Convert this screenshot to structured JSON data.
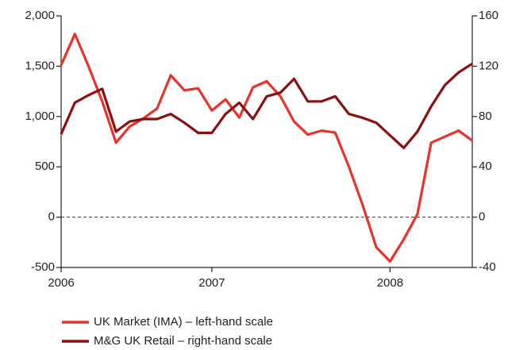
{
  "chart_data": {
    "type": "line",
    "categories": [
      "2006",
      null,
      null,
      null,
      null,
      null,
      null,
      null,
      null,
      null,
      null,
      "2007",
      null,
      null,
      null,
      null,
      null,
      null,
      null,
      null,
      null,
      null,
      null,
      null,
      "2008",
      null,
      null,
      null,
      null,
      null,
      null
    ],
    "series": [
      {
        "name": "UK Market (IMA) – left-hand scale",
        "color": "#e8332a",
        "values": [
          1510,
          1820,
          1500,
          1150,
          740,
          900,
          980,
          1080,
          1410,
          1260,
          1280,
          1060,
          1170,
          990,
          1290,
          1350,
          1200,
          950,
          820,
          860,
          840,
          500,
          120,
          -300,
          -440,
          -220,
          30,
          740,
          800,
          860,
          760
        ]
      },
      {
        "name": "M&G UK Retail – right-hand scale",
        "color": "#8b1010",
        "axis": "y2",
        "values": [
          66,
          91,
          97,
          102,
          68,
          76,
          78,
          78,
          82,
          75,
          67,
          67,
          82,
          91,
          78,
          96,
          99,
          110,
          92,
          92,
          96,
          82,
          79,
          75,
          65,
          55,
          68,
          88,
          105,
          115,
          122
        ]
      }
    ],
    "ylim": [
      -500,
      2000
    ],
    "yticks": [
      -500,
      0,
      500,
      {
        "value": 1000,
        "label": "1,000"
      },
      {
        "value": 1500,
        "label": "1,500"
      },
      {
        "value": 2000,
        "label": "2,000"
      }
    ],
    "y2lim": [
      -40,
      160
    ],
    "y2ticks": [
      -40,
      0,
      40,
      80,
      120,
      160
    ],
    "zero_line": "dashed"
  }
}
